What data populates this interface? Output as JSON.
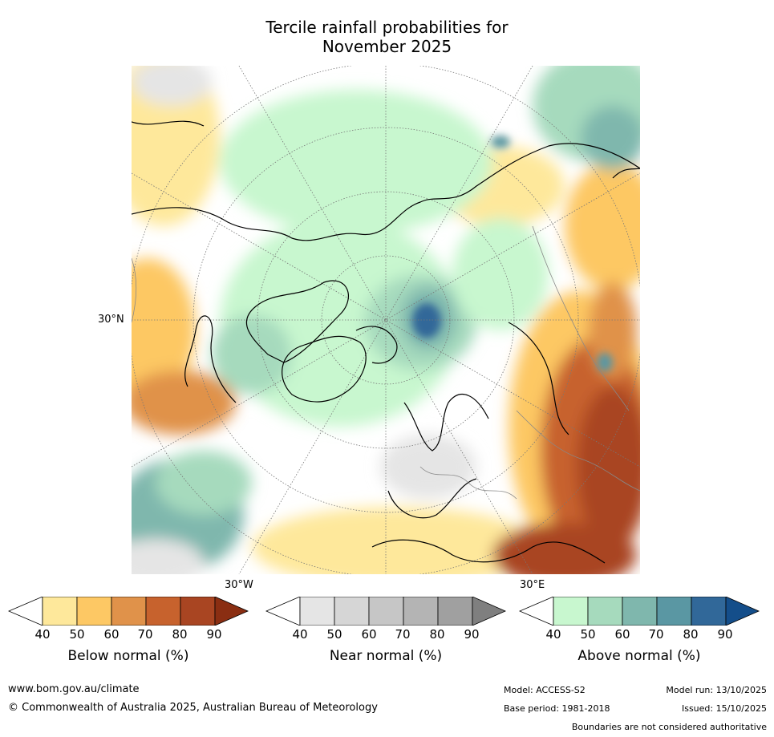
{
  "title": {
    "line1": "Tercile rainfall probabilities for",
    "line2": "November 2025"
  },
  "map": {
    "projection": "north polar stereographic",
    "lat_label": "30°N",
    "lon_labels": {
      "west": "30°W",
      "east": "30°E"
    }
  },
  "legend": [
    {
      "label": "Below normal (%)",
      "ticks": [
        "40",
        "50",
        "60",
        "70",
        "80",
        "90"
      ],
      "colors": [
        "#ffffff",
        "#fee89b",
        "#fdc864",
        "#e0924a",
        "#c7622d",
        "#a94522",
        "#8a2e12"
      ]
    },
    {
      "label": "Near normal (%)",
      "ticks": [
        "40",
        "50",
        "60",
        "70",
        "80",
        "90"
      ],
      "colors": [
        "#ffffff",
        "#e5e5e5",
        "#d6d6d6",
        "#c6c6c6",
        "#b4b4b4",
        "#a0a0a0",
        "#7f7f7f"
      ]
    },
    {
      "label": "Above normal (%)",
      "ticks": [
        "40",
        "50",
        "60",
        "70",
        "80",
        "90"
      ],
      "colors": [
        "#ffffff",
        "#c8f7cf",
        "#a6dabd",
        "#7fb7ad",
        "#5a97a3",
        "#316899",
        "#144e8a"
      ]
    }
  ],
  "footer": {
    "url": "www.bom.gov.au/climate",
    "copyright": "© Commonwealth of Australia 2025, Australian Bureau of Meteorology",
    "model": "Model: ACCESS-S2",
    "base_period": "Base period: 1981-2018",
    "model_run": "Model run: 13/10/2025",
    "issued": "Issued: 15/10/2025",
    "disclaimer": "Boundaries are not considered authoritative"
  }
}
